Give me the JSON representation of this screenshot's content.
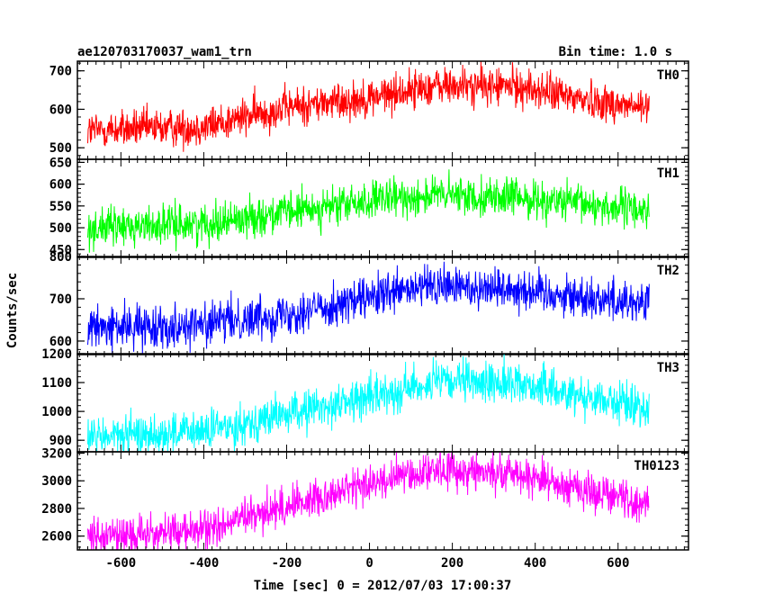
{
  "header": {
    "title": "ae120703170037_wam1_trn",
    "bin_time": "Bin time: 1.0 s"
  },
  "chart_data": {
    "type": "line",
    "xlabel": "Time [sec] 0 = 2012/07/03 17:00:37",
    "ylabel": "Counts/sec",
    "xlim": [
      -705,
      770
    ],
    "x_ticks": [
      -600,
      -400,
      -200,
      0,
      200,
      400,
      600
    ],
    "x_range": [
      -680,
      675
    ],
    "panels": [
      {
        "name": "TH0",
        "color": "#ff0000",
        "ylim": [
          470,
          725
        ],
        "y_ticks": [
          500,
          600,
          700
        ],
        "trend": [
          [
            -680,
            545
          ],
          [
            -400,
            555
          ],
          [
            -200,
            605
          ],
          [
            0,
            630
          ],
          [
            150,
            660
          ],
          [
            350,
            660
          ],
          [
            500,
            630
          ],
          [
            675,
            600
          ]
        ],
        "noise": 25
      },
      {
        "name": "TH1",
        "color": "#00ff00",
        "ylim": [
          432,
          657
        ],
        "y_ticks": [
          450,
          500,
          550,
          600,
          650
        ],
        "trend": [
          [
            -680,
            500
          ],
          [
            -400,
            510
          ],
          [
            -200,
            535
          ],
          [
            0,
            560
          ],
          [
            150,
            575
          ],
          [
            350,
            570
          ],
          [
            500,
            555
          ],
          [
            675,
            540
          ]
        ],
        "noise": 22
      },
      {
        "name": "TH2",
        "color": "#0000ff",
        "ylim": [
          568,
          800
        ],
        "y_ticks": [
          600,
          700,
          800
        ],
        "trend": [
          [
            -680,
            630
          ],
          [
            -400,
            640
          ],
          [
            -200,
            665
          ],
          [
            0,
            700
          ],
          [
            150,
            730
          ],
          [
            350,
            725
          ],
          [
            500,
            705
          ],
          [
            675,
            690
          ]
        ],
        "noise": 25
      },
      {
        "name": "TH3",
        "color": "#00ffff",
        "ylim": [
          860,
          1200
        ],
        "y_ticks": [
          900,
          1000,
          1100,
          1200
        ],
        "trend": [
          [
            -680,
            910
          ],
          [
            -400,
            930
          ],
          [
            -200,
            990
          ],
          [
            0,
            1050
          ],
          [
            150,
            1100
          ],
          [
            350,
            1100
          ],
          [
            500,
            1060
          ],
          [
            675,
            1010
          ]
        ],
        "noise": 35
      },
      {
        "name": "TH0123",
        "color": "#ff00ff",
        "ylim": [
          2500,
          3210
        ],
        "y_ticks": [
          2600,
          2800,
          3000,
          3200
        ],
        "trend": [
          [
            -680,
            2590
          ],
          [
            -400,
            2640
          ],
          [
            -200,
            2820
          ],
          [
            0,
            2980
          ],
          [
            150,
            3080
          ],
          [
            350,
            3060
          ],
          [
            500,
            2950
          ],
          [
            675,
            2830
          ]
        ],
        "noise": 70
      }
    ]
  }
}
